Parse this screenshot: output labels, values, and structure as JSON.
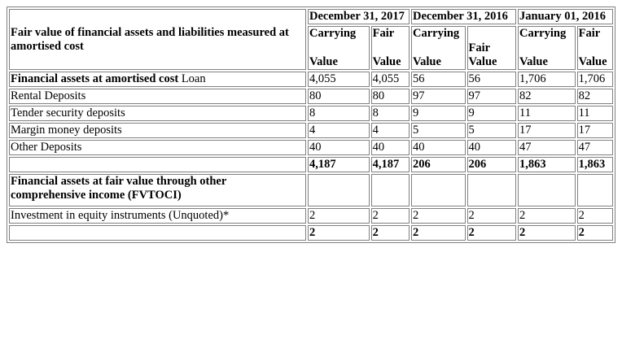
{
  "table": {
    "corner_label": "Fair value of financial assets and liabilities measured at amortised cost",
    "periods": [
      "December 31, 2017",
      "December 31, 2016",
      "January 01, 2016"
    ],
    "sub_headers": {
      "carrying_top": "Carrying",
      "carrying_bottom": "Value",
      "fair_top": "Fair",
      "fair_bottom": "Value"
    },
    "section1": {
      "label_bold": "Financial assets at amortised cost",
      "label_normal": " Loan",
      "first_row_values": [
        "4,055",
        "4,055",
        "56",
        "56",
        "1,706",
        "1,706"
      ],
      "rows": [
        {
          "label": "Rental Deposits",
          "values": [
            "80",
            "80",
            "97",
            "97",
            "82",
            "82"
          ]
        },
        {
          "label": "Tender security deposits",
          "values": [
            "8",
            "8",
            "9",
            "9",
            "11",
            "11"
          ]
        },
        {
          "label": "Margin money deposits",
          "values": [
            "4",
            "4",
            "5",
            "5",
            "17",
            "17"
          ]
        },
        {
          "label": "Other Deposits",
          "values": [
            "40",
            "40",
            "40",
            "40",
            "47",
            "47"
          ]
        }
      ],
      "total": [
        "4,187",
        "4,187",
        "206",
        "206",
        "1,863",
        "1,863"
      ]
    },
    "section2": {
      "label": "Financial assets at fair value through other comprehensive income (FVTOCI)",
      "rows": [
        {
          "label": "Investment in equity instruments (Unquoted)*",
          "values": [
            "2",
            "2",
            "2",
            "2",
            "2",
            "2"
          ]
        }
      ],
      "total": [
        "2",
        "2",
        "2",
        "2",
        "2",
        "2"
      ]
    }
  }
}
